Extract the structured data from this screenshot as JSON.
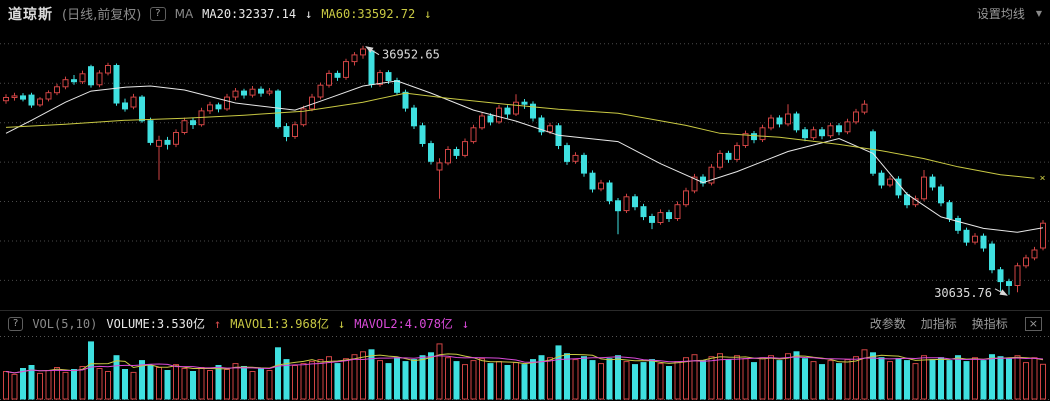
{
  "header": {
    "symbol": "道琼斯",
    "mode": "(日线,前复权)",
    "help_icon": "?",
    "ma_label": "MA",
    "ma20_label": "MA20:32337.14",
    "ma20_arrow": "↓",
    "ma60_label": "MA60:33592.72",
    "ma60_arrow": "↓",
    "settings_label": "设置均线",
    "settings_caret": "▼"
  },
  "volume_header": {
    "help_icon": "?",
    "indicator": "VOL(5,10)",
    "volume_label": "VOLUME:3.530亿",
    "volume_arrow": "↑",
    "mavol1_label": "MAVOL1:3.968亿",
    "mavol1_arrow": "↓",
    "mavol2_label": "MAVOL2:4.078亿",
    "mavol2_arrow": "↓",
    "menu": [
      "改参数",
      "加指标",
      "换指标"
    ],
    "close_icon": "×"
  },
  "colors": {
    "up": "#cf4444",
    "down": "#3fe0e0",
    "ma20": "#e8e8e8",
    "ma60": "#c9c943",
    "mavol1": "#c9c943",
    "mavol2": "#d94ad9",
    "grid": "#4a4a4a",
    "annotation_text": "#dcdcdc"
  },
  "chart_data": {
    "type": "candlestick",
    "title": "道琼斯 日线 前复权",
    "price_ylim": [
      30300,
      37300
    ],
    "grid_prices": [
      37000,
      36000,
      35000,
      34000,
      33000,
      32000,
      31000
    ],
    "high_annotation": {
      "index": 42,
      "price": 36952.65,
      "label": "36952.65"
    },
    "low_annotation": {
      "index": 118,
      "price": 30635.76,
      "label": "30635.76"
    },
    "ma20_latest": 32337.14,
    "ma60_latest": 33592.72,
    "volume_latest_yi": 3.53,
    "mavol1_latest_yi": 3.968,
    "mavol2_latest_yi": 4.078,
    "candles": [
      [
        35560,
        35720,
        35480,
        35640
      ],
      [
        35640,
        35760,
        35560,
        35680
      ],
      [
        35680,
        35750,
        35540,
        35600
      ],
      [
        35700,
        35760,
        35380,
        35450
      ],
      [
        35450,
        35650,
        35400,
        35600
      ],
      [
        35600,
        35820,
        35540,
        35760
      ],
      [
        35760,
        35990,
        35700,
        35910
      ],
      [
        35910,
        36170,
        35850,
        36090
      ],
      [
        36090,
        36210,
        35960,
        36040
      ],
      [
        36040,
        36320,
        35980,
        36240
      ],
      [
        36420,
        36470,
        35890,
        35960
      ],
      [
        35960,
        36330,
        35900,
        36260
      ],
      [
        36260,
        36520,
        36200,
        36450
      ],
      [
        36450,
        36500,
        35430,
        35500
      ],
      [
        35500,
        35610,
        35280,
        35350
      ],
      [
        35400,
        35730,
        35340,
        35650
      ],
      [
        35650,
        35700,
        35000,
        35050
      ],
      [
        35050,
        35130,
        34430,
        34500
      ],
      [
        34400,
        34670,
        33550,
        34550
      ],
      [
        34550,
        34640,
        34320,
        34450
      ],
      [
        34450,
        34830,
        34380,
        34750
      ],
      [
        34750,
        35130,
        34700,
        35050
      ],
      [
        35050,
        35120,
        34840,
        34950
      ],
      [
        34950,
        35380,
        34900,
        35300
      ],
      [
        35300,
        35530,
        35220,
        35450
      ],
      [
        35450,
        35510,
        35260,
        35350
      ],
      [
        35350,
        35730,
        35300,
        35650
      ],
      [
        35650,
        35880,
        35570,
        35800
      ],
      [
        35800,
        35860,
        35610,
        35700
      ],
      [
        35700,
        35930,
        35640,
        35850
      ],
      [
        35850,
        35920,
        35660,
        35750
      ],
      [
        35750,
        35880,
        35690,
        35800
      ],
      [
        35800,
        35850,
        34850,
        34900
      ],
      [
        34900,
        34990,
        34530,
        34650
      ],
      [
        34650,
        35030,
        34590,
        34950
      ],
      [
        34950,
        35430,
        34900,
        35350
      ],
      [
        35350,
        35730,
        35290,
        35650
      ],
      [
        35650,
        36020,
        35590,
        35950
      ],
      [
        35950,
        36330,
        35890,
        36250
      ],
      [
        36250,
        36320,
        36060,
        36150
      ],
      [
        36150,
        36620,
        36090,
        36550
      ],
      [
        36550,
        36790,
        36450,
        36720
      ],
      [
        36720,
        36952.65,
        36620,
        36870
      ],
      [
        36820,
        36890,
        35890,
        35970
      ],
      [
        35970,
        36340,
        35910,
        36270
      ],
      [
        36270,
        36330,
        35980,
        36070
      ],
      [
        36070,
        36140,
        35690,
        35770
      ],
      [
        35770,
        35840,
        35280,
        35370
      ],
      [
        35370,
        35450,
        34840,
        34920
      ],
      [
        34920,
        35000,
        34390,
        34470
      ],
      [
        34470,
        34540,
        33940,
        34020
      ],
      [
        33800,
        34100,
        33070,
        33980
      ],
      [
        33980,
        34400,
        33920,
        34320
      ],
      [
        34320,
        34390,
        34080,
        34170
      ],
      [
        34170,
        34600,
        34120,
        34520
      ],
      [
        34520,
        34950,
        34470,
        34870
      ],
      [
        34870,
        35250,
        34820,
        35170
      ],
      [
        35170,
        35240,
        34930,
        35020
      ],
      [
        35020,
        35450,
        34970,
        35370
      ],
      [
        35370,
        35440,
        35110,
        35220
      ],
      [
        35220,
        35720,
        35170,
        35520
      ],
      [
        35520,
        35600,
        35350,
        35470
      ],
      [
        35470,
        35540,
        35030,
        35120
      ],
      [
        35120,
        35190,
        34680,
        34770
      ],
      [
        34770,
        35000,
        34710,
        34920
      ],
      [
        34920,
        34990,
        34330,
        34420
      ],
      [
        34420,
        34490,
        33930,
        34020
      ],
      [
        34020,
        34250,
        33960,
        34170
      ],
      [
        34170,
        34240,
        33630,
        33720
      ],
      [
        33720,
        33790,
        33230,
        33320
      ],
      [
        33320,
        33550,
        33260,
        33470
      ],
      [
        33470,
        33540,
        32930,
        33020
      ],
      [
        33020,
        33090,
        32170,
        32770
      ],
      [
        32770,
        33200,
        32710,
        33120
      ],
      [
        33120,
        33190,
        32780,
        32870
      ],
      [
        32870,
        32940,
        32530,
        32620
      ],
      [
        32620,
        32690,
        32300,
        32470
      ],
      [
        32470,
        32800,
        32410,
        32720
      ],
      [
        32720,
        32790,
        32480,
        32570
      ],
      [
        32570,
        33000,
        32510,
        32920
      ],
      [
        32920,
        33350,
        32860,
        33270
      ],
      [
        33270,
        33700,
        33210,
        33620
      ],
      [
        33620,
        33690,
        33380,
        33470
      ],
      [
        33470,
        33950,
        33410,
        33870
      ],
      [
        33870,
        34300,
        33810,
        34220
      ],
      [
        34220,
        34290,
        33980,
        34070
      ],
      [
        34070,
        34500,
        34010,
        34420
      ],
      [
        34420,
        34800,
        34360,
        34720
      ],
      [
        34720,
        34790,
        34480,
        34570
      ],
      [
        34570,
        34950,
        34510,
        34870
      ],
      [
        34870,
        35200,
        34810,
        35120
      ],
      [
        35120,
        35190,
        34880,
        34970
      ],
      [
        34970,
        35470,
        34910,
        35220
      ],
      [
        35220,
        35280,
        34750,
        34820
      ],
      [
        34820,
        34890,
        34530,
        34620
      ],
      [
        34620,
        34900,
        34560,
        34820
      ],
      [
        34820,
        34890,
        34580,
        34670
      ],
      [
        34670,
        35000,
        34610,
        34920
      ],
      [
        34920,
        34990,
        34680,
        34770
      ],
      [
        34770,
        35100,
        34710,
        35020
      ],
      [
        35020,
        35350,
        34960,
        35270
      ],
      [
        35270,
        35570,
        35210,
        35470
      ],
      [
        34770,
        34830,
        33650,
        33720
      ],
      [
        33720,
        33790,
        33330,
        33420
      ],
      [
        33420,
        33650,
        33360,
        33570
      ],
      [
        33570,
        33640,
        33080,
        33170
      ],
      [
        33170,
        33240,
        32830,
        32920
      ],
      [
        32920,
        33150,
        32860,
        33070
      ],
      [
        33070,
        33800,
        33010,
        33620
      ],
      [
        33620,
        33690,
        33280,
        33370
      ],
      [
        33370,
        33440,
        32880,
        32970
      ],
      [
        32970,
        33040,
        32480,
        32570
      ],
      [
        32570,
        32640,
        32180,
        32270
      ],
      [
        32270,
        32340,
        31880,
        31970
      ],
      [
        31970,
        32200,
        31910,
        32120
      ],
      [
        32120,
        32190,
        31730,
        31820
      ],
      [
        31920,
        31990,
        31180,
        31270
      ],
      [
        31270,
        31340,
        30720,
        30970
      ],
      [
        30970,
        31040,
        30635.76,
        30870
      ],
      [
        30870,
        31450,
        30700,
        31370
      ],
      [
        31370,
        31650,
        31310,
        31570
      ],
      [
        31570,
        31850,
        31510,
        31770
      ],
      [
        31820,
        32530,
        31760,
        32450
      ]
    ],
    "ma20": [
      [
        0,
        34730
      ],
      [
        3,
        35060
      ],
      [
        7,
        35520
      ],
      [
        10,
        35800
      ],
      [
        14,
        35900
      ],
      [
        17,
        35930
      ],
      [
        21,
        35830
      ],
      [
        27,
        35500
      ],
      [
        34,
        35320
      ],
      [
        38,
        35620
      ],
      [
        42,
        35930
      ],
      [
        46,
        36060
      ],
      [
        50,
        35750
      ],
      [
        55,
        35320
      ],
      [
        60,
        35040
      ],
      [
        65,
        34680
      ],
      [
        72,
        34520
      ],
      [
        77,
        33960
      ],
      [
        82,
        33480
      ],
      [
        86,
        33760
      ],
      [
        92,
        34270
      ],
      [
        98,
        34600
      ],
      [
        102,
        34220
      ],
      [
        106,
        33190
      ],
      [
        110,
        32610
      ],
      [
        115,
        32320
      ],
      [
        119,
        32220
      ],
      [
        122,
        32337
      ]
    ],
    "ma60": [
      [
        0,
        34880
      ],
      [
        7,
        34960
      ],
      [
        14,
        35060
      ],
      [
        21,
        35110
      ],
      [
        28,
        35190
      ],
      [
        35,
        35290
      ],
      [
        42,
        35520
      ],
      [
        47,
        35750
      ],
      [
        52,
        35620
      ],
      [
        60,
        35440
      ],
      [
        65,
        35340
      ],
      [
        72,
        35240
      ],
      [
        80,
        34930
      ],
      [
        84,
        34730
      ],
      [
        91,
        34630
      ],
      [
        98,
        34450
      ],
      [
        103,
        34290
      ],
      [
        108,
        34090
      ],
      [
        112,
        33880
      ],
      [
        117,
        33680
      ],
      [
        121,
        33593
      ]
    ],
    "vol_ylim": [
      0,
      6.2
    ],
    "vol_ma_periods": [
      5,
      10
    ],
    "volumes_yi": [
      2.8,
      2.5,
      3.1,
      3.4,
      2.6,
      2.9,
      3.2,
      2.7,
      3.0,
      3.3,
      5.8,
      3.1,
      2.8,
      4.4,
      3.0,
      2.7,
      3.9,
      3.4,
      3.2,
      2.9,
      3.5,
      3.1,
      2.8,
      3.2,
      2.9,
      3.4,
      3.0,
      3.6,
      3.3,
      2.8,
      3.1,
      2.9,
      5.2,
      4.0,
      3.4,
      3.6,
      3.8,
      4.0,
      4.3,
      3.6,
      4.1,
      4.5,
      4.8,
      5.0,
      3.9,
      3.6,
      4.2,
      3.8,
      4.0,
      4.4,
      4.7,
      5.6,
      4.2,
      3.8,
      3.5,
      3.9,
      4.1,
      3.6,
      3.8,
      3.4,
      3.7,
      3.5,
      4.0,
      4.4,
      4.2,
      5.4,
      4.6,
      4.0,
      4.3,
      3.9,
      3.6,
      4.1,
      4.4,
      3.8,
      3.5,
      3.7,
      4.0,
      3.6,
      3.3,
      3.8,
      4.2,
      4.5,
      3.9,
      4.3,
      4.6,
      4.0,
      4.4,
      4.1,
      3.7,
      4.2,
      4.4,
      3.9,
      4.6,
      4.8,
      4.1,
      3.8,
      3.5,
      3.9,
      3.6,
      4.0,
      4.3,
      5.0,
      4.7,
      4.2,
      3.8,
      4.1,
      3.9,
      3.6,
      4.4,
      4.0,
      4.2,
      3.9,
      4.4,
      3.8,
      4.2,
      3.9,
      4.5,
      4.3,
      4.1,
      4.4,
      3.7,
      4.2,
      3.53
    ]
  }
}
